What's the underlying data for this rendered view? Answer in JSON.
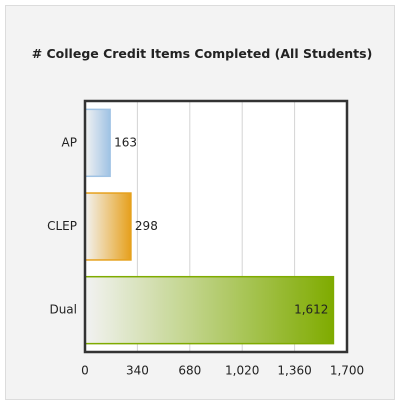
{
  "chart_data": {
    "type": "bar",
    "orientation": "horizontal",
    "title": "# College Credit Items Completed (All Students)",
    "categories": [
      "AP",
      "CLEP",
      "Dual"
    ],
    "values": [
      163,
      298,
      1612
    ],
    "value_labels": [
      "163",
      "298",
      "1,612"
    ],
    "colors": [
      "#a8cdf0",
      "#f2a91e",
      "#86b400"
    ],
    "xlim": [
      0,
      1700
    ],
    "xticks": [
      0,
      340,
      680,
      {
        "value": 1020,
        "label": "1,020"
      },
      {
        "value": 1360,
        "label": "1,360"
      },
      {
        "value": 1700,
        "label": "1,700"
      }
    ],
    "grid": true
  }
}
